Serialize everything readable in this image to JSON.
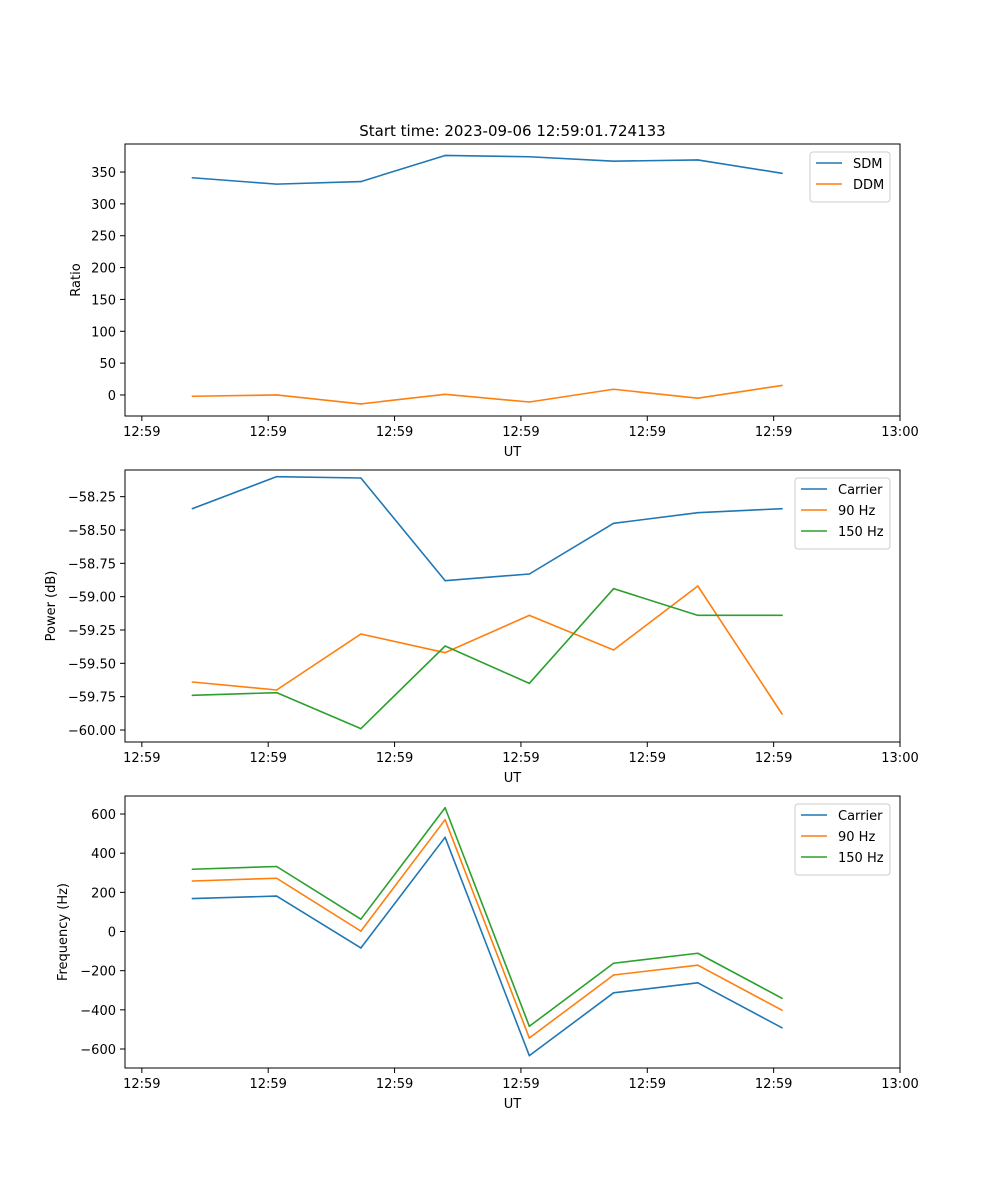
{
  "figure": {
    "title": "Start time: 2023-09-06 12:59:01.724133"
  },
  "colors": {
    "blue": "#1f77b4",
    "orange": "#ff7f0e",
    "green": "#2ca02c"
  },
  "chart_data": [
    {
      "type": "line",
      "title": "Start time: 2023-09-06 12:59:01.724133",
      "xlabel": "UT",
      "ylabel": "Ratio",
      "x": [
        1,
        2,
        3,
        4,
        5,
        6,
        7,
        8
      ],
      "xlim": [
        0.2,
        9.4
      ],
      "xticks": [
        0.4,
        1.9,
        3.4,
        4.9,
        6.4,
        7.9,
        9.4
      ],
      "xtick_labels": [
        "12:59",
        "12:59",
        "12:59",
        "12:59",
        "12:59",
        "12:59",
        "13:00"
      ],
      "ylim": [
        -33,
        394
      ],
      "yticks": [
        0,
        50,
        100,
        150,
        200,
        250,
        300,
        350
      ],
      "ytick_labels": [
        "0",
        "50",
        "100",
        "150",
        "200",
        "250",
        "300",
        "350"
      ],
      "legend_position": "top-right",
      "series": [
        {
          "name": "SDM",
          "color": "#1f77b4",
          "values": [
            341,
            331,
            335,
            376,
            374,
            367,
            369,
            348
          ]
        },
        {
          "name": "DDM",
          "color": "#ff7f0e",
          "values": [
            -2,
            0,
            -14,
            1,
            -11,
            9,
            -5,
            15
          ]
        }
      ]
    },
    {
      "type": "line",
      "title": "",
      "xlabel": "UT",
      "ylabel": "Power (dB)",
      "x": [
        1,
        2,
        3,
        4,
        5,
        6,
        7,
        8
      ],
      "xlim": [
        0.2,
        9.4
      ],
      "xticks": [
        0.4,
        1.9,
        3.4,
        4.9,
        6.4,
        7.9,
        9.4
      ],
      "xtick_labels": [
        "12:59",
        "12:59",
        "12:59",
        "12:59",
        "12:59",
        "12:59",
        "13:00"
      ],
      "ylim": [
        -60.09,
        -58.05
      ],
      "yticks": [
        -60.0,
        -59.75,
        -59.5,
        -59.25,
        -59.0,
        -58.75,
        -58.5,
        -58.25
      ],
      "ytick_labels": [
        "−60.00",
        "−59.75",
        "−59.50",
        "−59.25",
        "−59.00",
        "−58.75",
        "−58.50",
        "−58.25"
      ],
      "legend_position": "top-right",
      "series": [
        {
          "name": "Carrier",
          "color": "#1f77b4",
          "values": [
            -58.34,
            -58.1,
            -58.11,
            -58.88,
            -58.83,
            -58.45,
            -58.37,
            -58.34
          ]
        },
        {
          "name": "90 Hz",
          "color": "#ff7f0e",
          "values": [
            -59.64,
            -59.7,
            -59.28,
            -59.42,
            -59.14,
            -59.4,
            -58.92,
            -59.88
          ]
        },
        {
          "name": "150 Hz",
          "color": "#2ca02c",
          "values": [
            -59.74,
            -59.72,
            -59.99,
            -59.37,
            -59.65,
            -58.94,
            -59.14,
            -59.14
          ]
        }
      ]
    },
    {
      "type": "line",
      "title": "",
      "xlabel": "UT",
      "ylabel": "Frequency (Hz)",
      "x": [
        1,
        2,
        3,
        4,
        5,
        6,
        7,
        8
      ],
      "xlim": [
        0.2,
        9.4
      ],
      "xticks": [
        0.4,
        1.9,
        3.4,
        4.9,
        6.4,
        7.9,
        9.4
      ],
      "xtick_labels": [
        "12:59",
        "12:59",
        "12:59",
        "12:59",
        "12:59",
        "12:59",
        "13:00"
      ],
      "ylim": [
        -697,
        692
      ],
      "yticks": [
        -600,
        -400,
        -200,
        0,
        200,
        400,
        600
      ],
      "ytick_labels": [
        "−600",
        "−400",
        "−200",
        "0",
        "200",
        "400",
        "600"
      ],
      "legend_position": "top-right",
      "series": [
        {
          "name": "Carrier",
          "color": "#1f77b4",
          "values": [
            168,
            181,
            -84,
            481,
            -634,
            -313,
            -262,
            -492
          ]
        },
        {
          "name": "90 Hz",
          "color": "#ff7f0e",
          "values": [
            258,
            272,
            2,
            571,
            -544,
            -222,
            -172,
            -402
          ]
        },
        {
          "name": "150 Hz",
          "color": "#2ca02c",
          "values": [
            318,
            332,
            63,
            632,
            -484,
            -162,
            -111,
            -341
          ]
        }
      ]
    }
  ]
}
